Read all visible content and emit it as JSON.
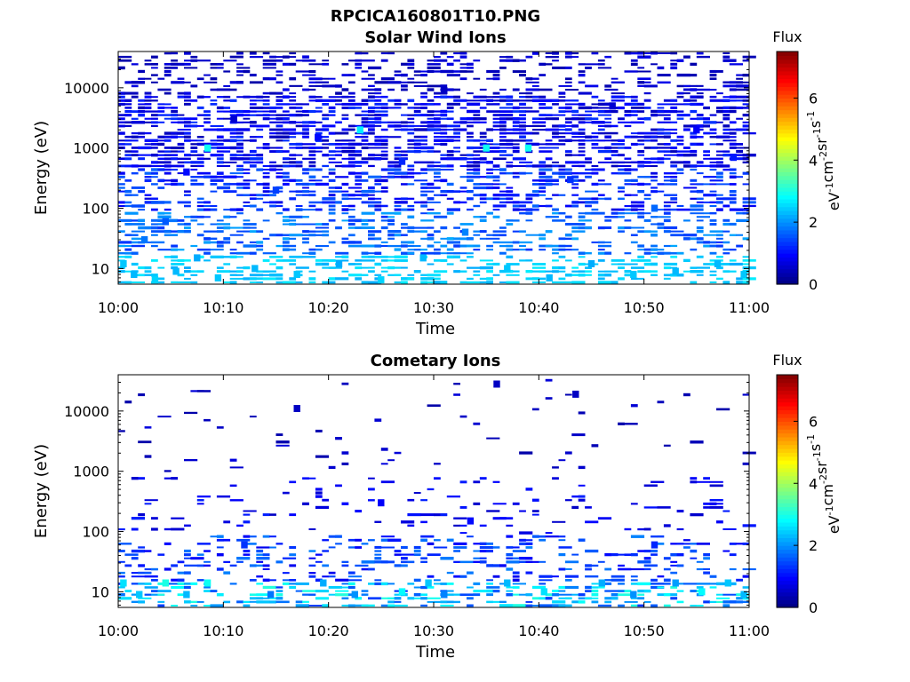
{
  "figure": {
    "suptitle": "RPCICA160801T10.PNG"
  },
  "chart_data": [
    {
      "type": "heatmap",
      "title": "Solar Wind Ions",
      "xlabel": "Time",
      "ylabel": "Energy (eV)",
      "x_range": [
        "10:00",
        "11:00"
      ],
      "x_ticks": [
        "10:00",
        "10:10",
        "10:20",
        "10:30",
        "10:40",
        "10:50",
        "11:00"
      ],
      "y_scale": "log",
      "y_range": [
        5.5,
        40000
      ],
      "y_ticks": [
        10,
        100,
        1000,
        10000
      ],
      "y_tick_labels": [
        "10",
        "100",
        "1000",
        "10000"
      ],
      "colorbar": {
        "label": "Flux",
        "units": "eV⁻¹cm⁻²sr⁻¹s⁻¹",
        "units_main": [
          "eV",
          "cm",
          "sr",
          "s"
        ],
        "units_sup": [
          "-1",
          "-2",
          "-1",
          "-1"
        ],
        "range": [
          0,
          7.5
        ],
        "ticks": [
          0,
          2,
          4,
          6
        ],
        "tick_labels": [
          "0",
          "2",
          "4",
          "6"
        ],
        "colormap": "jet"
      },
      "grid": false,
      "bins": [
        {
          "t": 0.5,
          "e": 12,
          "v": 2.4
        },
        {
          "t": 1.5,
          "e": 8,
          "v": 2.3
        },
        {
          "t": 2.5,
          "e": 30,
          "v": 1.8
        },
        {
          "t": 3.5,
          "e": 6.5,
          "v": 2.5
        },
        {
          "t": 4.5,
          "e": 60,
          "v": 1.6
        },
        {
          "t": 5.5,
          "e": 9,
          "v": 2.3
        },
        {
          "t": 6.5,
          "e": 400,
          "v": 1.0
        },
        {
          "t": 7.5,
          "e": 15,
          "v": 2.2
        },
        {
          "t": 8.5,
          "e": 1000,
          "v": 2.9
        },
        {
          "t": 9.5,
          "e": 7,
          "v": 2.4
        },
        {
          "t": 11,
          "e": 3000,
          "v": 0.6
        },
        {
          "t": 13,
          "e": 10,
          "v": 2.3
        },
        {
          "t": 15,
          "e": 200,
          "v": 1.4
        },
        {
          "t": 17,
          "e": 8,
          "v": 2.4
        },
        {
          "t": 19,
          "e": 1500,
          "v": 1.0
        },
        {
          "t": 21,
          "e": 12,
          "v": 2.2
        },
        {
          "t": 23,
          "e": 2000,
          "v": 2.7
        },
        {
          "t": 25,
          "e": 6.5,
          "v": 2.5
        },
        {
          "t": 27,
          "e": 600,
          "v": 1.2
        },
        {
          "t": 29,
          "e": 15,
          "v": 2.3
        },
        {
          "t": 31,
          "e": 9000,
          "v": 0.5
        },
        {
          "t": 33,
          "e": 40,
          "v": 1.9
        },
        {
          "t": 35,
          "e": 1000,
          "v": 2.9
        },
        {
          "t": 37,
          "e": 10,
          "v": 2.4
        },
        {
          "t": 39,
          "e": 1000,
          "v": 2.9
        },
        {
          "t": 41,
          "e": 7,
          "v": 2.3
        },
        {
          "t": 43,
          "e": 300,
          "v": 1.3
        },
        {
          "t": 45,
          "e": 12,
          "v": 2.2
        },
        {
          "t": 47,
          "e": 5000,
          "v": 0.6
        },
        {
          "t": 49,
          "e": 8,
          "v": 2.4
        },
        {
          "t": 51,
          "e": 100,
          "v": 1.7
        },
        {
          "t": 53,
          "e": 9,
          "v": 2.3
        },
        {
          "t": 55,
          "e": 2000,
          "v": 0.9
        },
        {
          "t": 57,
          "e": 12,
          "v": 2.3
        },
        {
          "t": 58.5,
          "e": 700,
          "v": 1.1
        },
        {
          "t": 59.5,
          "e": 8,
          "v": 2.4
        }
      ]
    },
    {
      "type": "heatmap",
      "title": "Cometary Ions",
      "xlabel": "Time",
      "ylabel": "Energy (eV)",
      "x_range": [
        "10:00",
        "11:00"
      ],
      "x_ticks": [
        "10:00",
        "10:10",
        "10:20",
        "10:30",
        "10:40",
        "10:50",
        "11:00"
      ],
      "y_scale": "log",
      "y_range": [
        5.5,
        40000
      ],
      "y_ticks": [
        10,
        100,
        1000,
        10000
      ],
      "y_tick_labels": [
        "10",
        "100",
        "1000",
        "10000"
      ],
      "colorbar": {
        "label": "Flux",
        "units": "eV⁻¹cm⁻²sr⁻¹s⁻¹",
        "units_main": [
          "eV",
          "cm",
          "sr",
          "s"
        ],
        "units_sup": [
          "-1",
          "-2",
          "-1",
          "-1"
        ],
        "range": [
          0,
          7.5
        ],
        "ticks": [
          0,
          2,
          4,
          6
        ],
        "tick_labels": [
          "0",
          "2",
          "4",
          "6"
        ],
        "colormap": "jet"
      },
      "grid": false,
      "bins": [
        {
          "t": 0.5,
          "e": 14,
          "v": 2.6
        },
        {
          "t": 2,
          "e": 9,
          "v": 2.4
        },
        {
          "t": 4.5,
          "e": 14,
          "v": 3.0
        },
        {
          "t": 6.5,
          "e": 9,
          "v": 2.3
        },
        {
          "t": 8.5,
          "e": 14,
          "v": 2.9
        },
        {
          "t": 12,
          "e": 60,
          "v": 1.3
        },
        {
          "t": 14.5,
          "e": 9,
          "v": 1.8
        },
        {
          "t": 17,
          "e": 11000,
          "v": 0.5
        },
        {
          "t": 19.5,
          "e": 14,
          "v": 2.2
        },
        {
          "t": 22.5,
          "e": 9,
          "v": 2.0
        },
        {
          "t": 25,
          "e": 300,
          "v": 0.9
        },
        {
          "t": 27,
          "e": 10,
          "v": 2.8
        },
        {
          "t": 29.5,
          "e": 14,
          "v": 2.4
        },
        {
          "t": 31,
          "e": 9,
          "v": 1.9
        },
        {
          "t": 33.5,
          "e": 150,
          "v": 1.0
        },
        {
          "t": 36,
          "e": 28000,
          "v": 0.5
        },
        {
          "t": 37,
          "e": 14,
          "v": 2.3
        },
        {
          "t": 40.5,
          "e": 10,
          "v": 2.6
        },
        {
          "t": 43.5,
          "e": 19000,
          "v": 0.5
        },
        {
          "t": 46,
          "e": 14,
          "v": 2.2
        },
        {
          "t": 49,
          "e": 9,
          "v": 2.0
        },
        {
          "t": 51,
          "e": 60,
          "v": 1.2
        },
        {
          "t": 53,
          "e": 14,
          "v": 2.1
        },
        {
          "t": 55.5,
          "e": 10,
          "v": 2.8
        },
        {
          "t": 58,
          "e": 14,
          "v": 2.4
        },
        {
          "t": 59.5,
          "e": 9,
          "v": 2.3
        }
      ]
    }
  ]
}
